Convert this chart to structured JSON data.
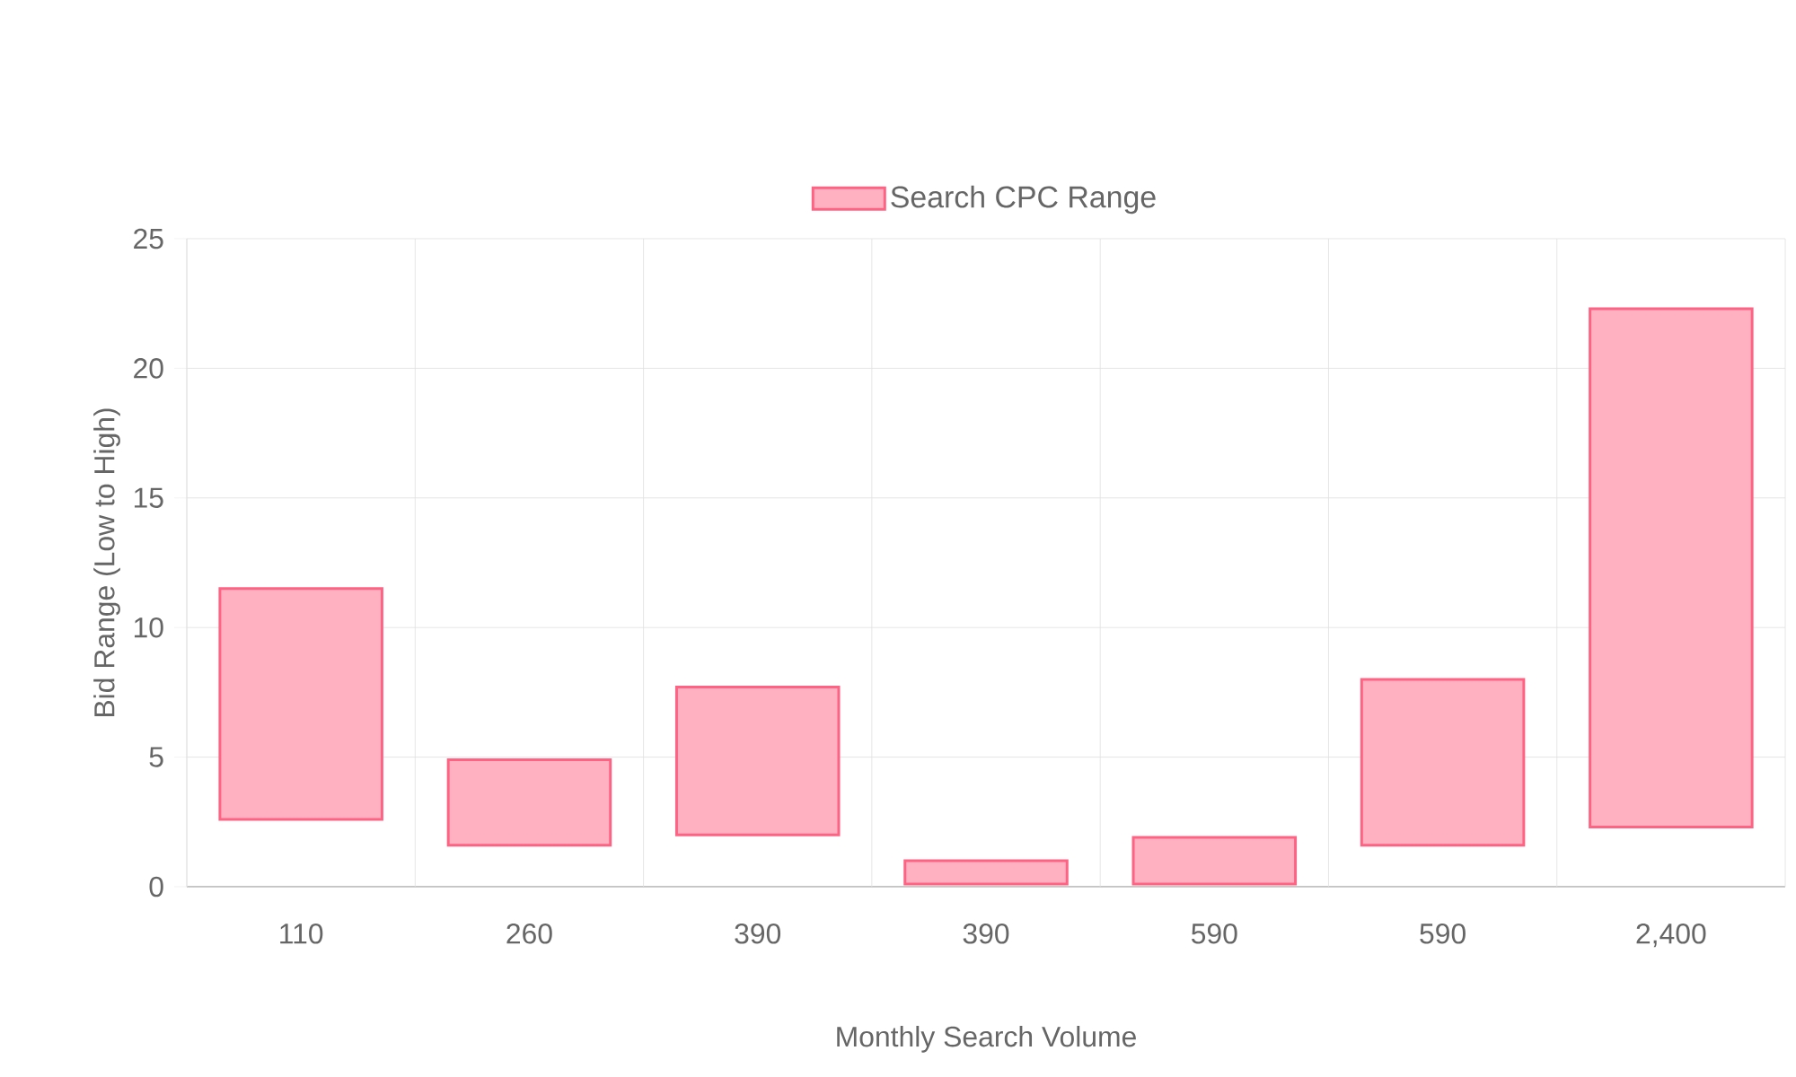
{
  "chart_data": {
    "type": "bar",
    "xlabel": "Monthly Search Volume",
    "ylabel": "Bid Range (Low to High)",
    "categories": [
      "110",
      "260",
      "390",
      "390",
      "590",
      "590",
      "2,400"
    ],
    "series": [
      {
        "name": "Search CPC Range",
        "color": "#ff6384",
        "values": [
          8.9,
          3.3,
          5.7,
          0.9,
          1.8,
          6.4,
          20.0
        ],
        "base": [
          2.6,
          1.6,
          2.0,
          0.1,
          0.1,
          1.6,
          2.3
        ]
      }
    ],
    "ylim": [
      0,
      25
    ],
    "yticks": [
      0,
      5,
      10,
      15,
      20,
      25
    ],
    "grid": true,
    "legend": "top"
  }
}
